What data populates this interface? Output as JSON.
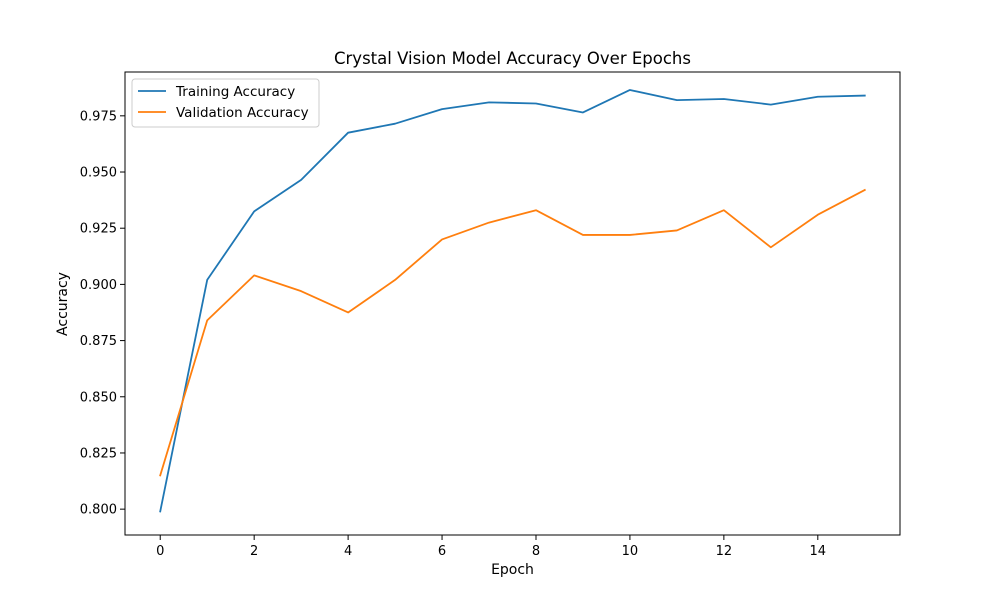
{
  "chart_data": {
    "type": "line",
    "title": "Crystal Vision Model Accuracy Over Epochs",
    "xlabel": "Epoch",
    "ylabel": "Accuracy",
    "x": [
      0,
      1,
      2,
      3,
      4,
      5,
      6,
      7,
      8,
      9,
      10,
      11,
      12,
      13,
      14,
      15
    ],
    "xlim": [
      -0.75,
      15.75
    ],
    "ylim": [
      0.7885,
      0.9945
    ],
    "xticks": [
      0,
      2,
      4,
      6,
      8,
      10,
      12,
      14
    ],
    "xtick_labels": [
      "0",
      "2",
      "4",
      "6",
      "8",
      "10",
      "12",
      "14"
    ],
    "yticks": [
      0.8,
      0.825,
      0.85,
      0.875,
      0.9,
      0.925,
      0.95,
      0.975
    ],
    "ytick_labels": [
      "0.800",
      "0.825",
      "0.850",
      "0.875",
      "0.900",
      "0.925",
      "0.950",
      "0.975"
    ],
    "grid": false,
    "legend_position": "top-left",
    "series": [
      {
        "name": "Training Accuracy",
        "color": "#1f77b4",
        "values": [
          0.799,
          0.902,
          0.9325,
          0.9465,
          0.9675,
          0.9715,
          0.978,
          0.981,
          0.9805,
          0.9765,
          0.9865,
          0.982,
          0.9825,
          0.98,
          0.9835,
          0.984
        ]
      },
      {
        "name": "Validation Accuracy",
        "color": "#ff7f0e",
        "values": [
          0.815,
          0.884,
          0.904,
          0.897,
          0.8875,
          0.902,
          0.92,
          0.9275,
          0.933,
          0.922,
          0.922,
          0.924,
          0.933,
          0.9165,
          0.931,
          0.942
        ]
      }
    ]
  }
}
